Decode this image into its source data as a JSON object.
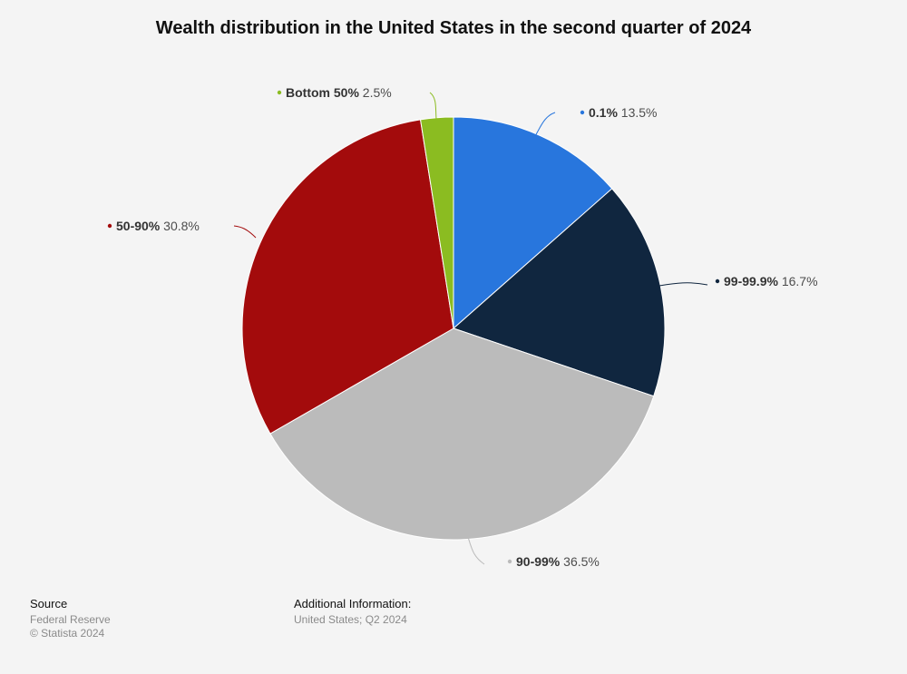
{
  "chart_data": {
    "type": "pie",
    "title": "Wealth distribution in the United States in the second quarter of 2024",
    "slices": [
      {
        "name": "0.1%",
        "value": 13.5,
        "label": "13.5%",
        "color": "#2876dd"
      },
      {
        "name": "99-99.9%",
        "value": 16.7,
        "label": "16.7%",
        "color": "#10263f"
      },
      {
        "name": "90-99%",
        "value": 36.5,
        "label": "36.5%",
        "color": "#bbbbbb"
      },
      {
        "name": "50-90%",
        "value": 30.8,
        "label": "30.8%",
        "color": "#a30b0c"
      },
      {
        "name": "Bottom 50%",
        "value": 2.5,
        "label": "2.5%",
        "color": "#8bbc21"
      }
    ]
  },
  "footer": {
    "source_heading": "Source",
    "source_text": "Federal Reserve",
    "copyright": "© Statista 2024",
    "info_heading": "Additional Information:",
    "info_text": "United States; Q2 2024"
  }
}
